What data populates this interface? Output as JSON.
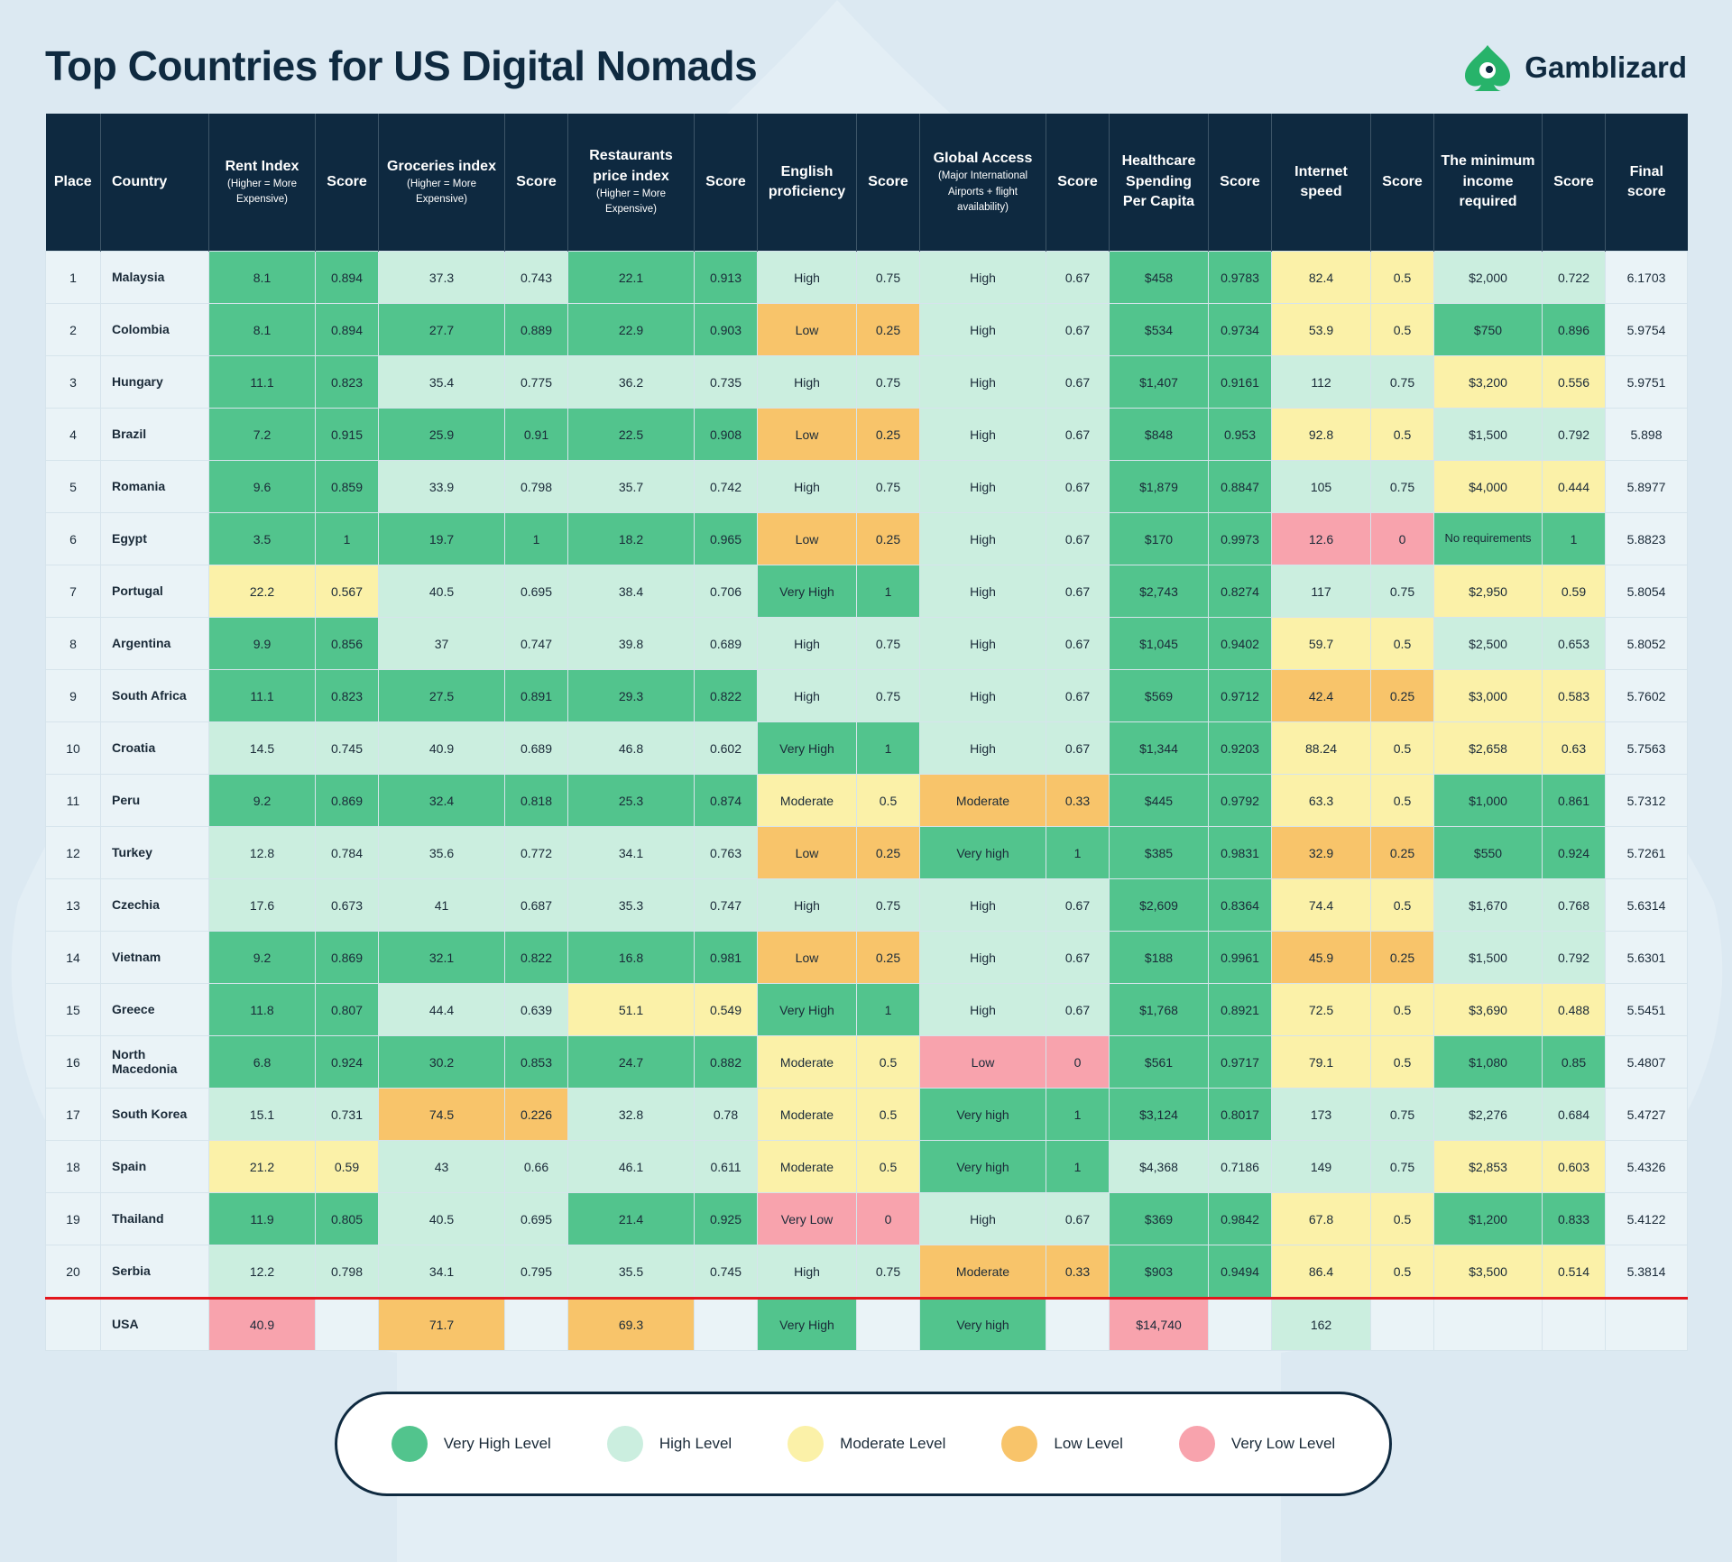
{
  "title": "Top Countries for US Digital Nomads",
  "brand": "Gamblizard",
  "colors": {
    "very_high": "#52c48d",
    "high": "#cbeedf",
    "moderate": "#fbf1a8",
    "low": "#f8c46a",
    "very_low": "#f8a3ad",
    "header": "#0e2940",
    "divider": "#e3161d"
  },
  "legend": [
    {
      "key": "vh",
      "label": "Very High Level"
    },
    {
      "key": "h",
      "label": "High Level"
    },
    {
      "key": "m",
      "label": "Moderate Level"
    },
    {
      "key": "l",
      "label": "Low Level"
    },
    {
      "key": "vl",
      "label": "Very Low Level"
    }
  ],
  "headers": [
    {
      "label": "Place",
      "sub": ""
    },
    {
      "label": "Country",
      "sub": ""
    },
    {
      "label": "Rent Index",
      "sub": "(Higher = More Expensive)"
    },
    {
      "label": "Score",
      "sub": ""
    },
    {
      "label": "Groceries index",
      "sub": "(Higher = More Expensive)"
    },
    {
      "label": "Score",
      "sub": ""
    },
    {
      "label": "Restaurants price index",
      "sub": "(Higher = More Expensive)"
    },
    {
      "label": "Score",
      "sub": ""
    },
    {
      "label": "English proficiency",
      "sub": ""
    },
    {
      "label": "Score",
      "sub": ""
    },
    {
      "label": "Global Access",
      "sub": "(Major International Airports + flight availability)"
    },
    {
      "label": "Score",
      "sub": ""
    },
    {
      "label": "Healthcare Spending Per Capita",
      "sub": ""
    },
    {
      "label": "Score",
      "sub": ""
    },
    {
      "label": "Internet speed",
      "sub": ""
    },
    {
      "label": "Score",
      "sub": ""
    },
    {
      "label": "The minimum income required",
      "sub": ""
    },
    {
      "label": "Score",
      "sub": ""
    },
    {
      "label": "Final score",
      "sub": ""
    }
  ],
  "chart_data": {
    "type": "table",
    "title": "Top Countries for US Digital Nomads",
    "rows": [
      {
        "place": "1",
        "country": "Malaysia",
        "rent": "8.1",
        "rent_score": "0.894",
        "rent_level": "vh",
        "groc": "37.3",
        "groc_score": "0.743",
        "groc_level": "h",
        "rest": "22.1",
        "rest_score": "0.913",
        "rest_level": "vh",
        "eng": "High",
        "eng_score": "0.75",
        "eng_level": "h",
        "access": "High",
        "access_score": "0.67",
        "access_level": "h",
        "health": "$458",
        "health_score": "0.9783",
        "health_level": "vh",
        "net": "82.4",
        "net_score": "0.5",
        "net_level": "m",
        "income": "$2,000",
        "income_score": "0.722",
        "income_level": "h",
        "final": "6.1703"
      },
      {
        "place": "2",
        "country": "Colombia",
        "rent": "8.1",
        "rent_score": "0.894",
        "rent_level": "vh",
        "groc": "27.7",
        "groc_score": "0.889",
        "groc_level": "vh",
        "rest": "22.9",
        "rest_score": "0.903",
        "rest_level": "vh",
        "eng": "Low",
        "eng_score": "0.25",
        "eng_level": "l",
        "access": "High",
        "access_score": "0.67",
        "access_level": "h",
        "health": "$534",
        "health_score": "0.9734",
        "health_level": "vh",
        "net": "53.9",
        "net_score": "0.5",
        "net_level": "m",
        "income": "$750",
        "income_score": "0.896",
        "income_level": "vh",
        "final": "5.9754"
      },
      {
        "place": "3",
        "country": "Hungary",
        "rent": "11.1",
        "rent_score": "0.823",
        "rent_level": "vh",
        "groc": "35.4",
        "groc_score": "0.775",
        "groc_level": "h",
        "rest": "36.2",
        "rest_score": "0.735",
        "rest_level": "h",
        "eng": "High",
        "eng_score": "0.75",
        "eng_level": "h",
        "access": "High",
        "access_score": "0.67",
        "access_level": "h",
        "health": "$1,407",
        "health_score": "0.9161",
        "health_level": "vh",
        "net": "112",
        "net_score": "0.75",
        "net_level": "h",
        "income": "$3,200",
        "income_score": "0.556",
        "income_level": "m",
        "final": "5.9751"
      },
      {
        "place": "4",
        "country": "Brazil",
        "rent": "7.2",
        "rent_score": "0.915",
        "rent_level": "vh",
        "groc": "25.9",
        "groc_score": "0.91",
        "groc_level": "vh",
        "rest": "22.5",
        "rest_score": "0.908",
        "rest_level": "vh",
        "eng": "Low",
        "eng_score": "0.25",
        "eng_level": "l",
        "access": "High",
        "access_score": "0.67",
        "access_level": "h",
        "health": "$848",
        "health_score": "0.953",
        "health_level": "vh",
        "net": "92.8",
        "net_score": "0.5",
        "net_level": "m",
        "income": "$1,500",
        "income_score": "0.792",
        "income_level": "h",
        "final": "5.898"
      },
      {
        "place": "5",
        "country": "Romania",
        "rent": "9.6",
        "rent_score": "0.859",
        "rent_level": "vh",
        "groc": "33.9",
        "groc_score": "0.798",
        "groc_level": "h",
        "rest": "35.7",
        "rest_score": "0.742",
        "rest_level": "h",
        "eng": "High",
        "eng_score": "0.75",
        "eng_level": "h",
        "access": "High",
        "access_score": "0.67",
        "access_level": "h",
        "health": "$1,879",
        "health_score": "0.8847",
        "health_level": "vh",
        "net": "105",
        "net_score": "0.75",
        "net_level": "h",
        "income": "$4,000",
        "income_score": "0.444",
        "income_level": "m",
        "final": "5.8977"
      },
      {
        "place": "6",
        "country": "Egypt",
        "rent": "3.5",
        "rent_score": "1",
        "rent_level": "vh",
        "groc": "19.7",
        "groc_score": "1",
        "groc_level": "vh",
        "rest": "18.2",
        "rest_score": "0.965",
        "rest_level": "vh",
        "eng": "Low",
        "eng_score": "0.25",
        "eng_level": "l",
        "access": "High",
        "access_score": "0.67",
        "access_level": "h",
        "health": "$170",
        "health_score": "0.9973",
        "health_level": "vh",
        "net": "12.6",
        "net_score": "0",
        "net_level": "vl",
        "income": "No requirements",
        "income_score": "1",
        "income_level": "vh",
        "final": "5.8823"
      },
      {
        "place": "7",
        "country": "Portugal",
        "rent": "22.2",
        "rent_score": "0.567",
        "rent_level": "m",
        "groc": "40.5",
        "groc_score": "0.695",
        "groc_level": "h",
        "rest": "38.4",
        "rest_score": "0.706",
        "rest_level": "h",
        "eng": "Very High",
        "eng_score": "1",
        "eng_level": "vh",
        "access": "High",
        "access_score": "0.67",
        "access_level": "h",
        "health": "$2,743",
        "health_score": "0.8274",
        "health_level": "vh",
        "net": "117",
        "net_score": "0.75",
        "net_level": "h",
        "income": "$2,950",
        "income_score": "0.59",
        "income_level": "m",
        "final": "5.8054"
      },
      {
        "place": "8",
        "country": "Argentina",
        "rent": "9.9",
        "rent_score": "0.856",
        "rent_level": "vh",
        "groc": "37",
        "groc_score": "0.747",
        "groc_level": "h",
        "rest": "39.8",
        "rest_score": "0.689",
        "rest_level": "h",
        "eng": "High",
        "eng_score": "0.75",
        "eng_level": "h",
        "access": "High",
        "access_score": "0.67",
        "access_level": "h",
        "health": "$1,045",
        "health_score": "0.9402",
        "health_level": "vh",
        "net": "59.7",
        "net_score": "0.5",
        "net_level": "m",
        "income": "$2,500",
        "income_score": "0.653",
        "income_level": "h",
        "final": "5.8052"
      },
      {
        "place": "9",
        "country": "South Africa",
        "rent": "11.1",
        "rent_score": "0.823",
        "rent_level": "vh",
        "groc": "27.5",
        "groc_score": "0.891",
        "groc_level": "vh",
        "rest": "29.3",
        "rest_score": "0.822",
        "rest_level": "vh",
        "eng": "High",
        "eng_score": "0.75",
        "eng_level": "h",
        "access": "High",
        "access_score": "0.67",
        "access_level": "h",
        "health": "$569",
        "health_score": "0.9712",
        "health_level": "vh",
        "net": "42.4",
        "net_score": "0.25",
        "net_level": "l",
        "income": "$3,000",
        "income_score": "0.583",
        "income_level": "m",
        "final": "5.7602"
      },
      {
        "place": "10",
        "country": "Croatia",
        "rent": "14.5",
        "rent_score": "0.745",
        "rent_level": "h",
        "groc": "40.9",
        "groc_score": "0.689",
        "groc_level": "h",
        "rest": "46.8",
        "rest_score": "0.602",
        "rest_level": "h",
        "eng": "Very High",
        "eng_score": "1",
        "eng_level": "vh",
        "access": "High",
        "access_score": "0.67",
        "access_level": "h",
        "health": "$1,344",
        "health_score": "0.9203",
        "health_level": "vh",
        "net": "88.24",
        "net_score": "0.5",
        "net_level": "m",
        "income": "$2,658",
        "income_score": "0.63",
        "income_level": "m",
        "final": "5.7563"
      },
      {
        "place": "11",
        "country": "Peru",
        "rent": "9.2",
        "rent_score": "0.869",
        "rent_level": "vh",
        "groc": "32.4",
        "groc_score": "0.818",
        "groc_level": "vh",
        "rest": "25.3",
        "rest_score": "0.874",
        "rest_level": "vh",
        "eng": "Moderate",
        "eng_score": "0.5",
        "eng_level": "m",
        "access": "Moderate",
        "access_score": "0.33",
        "access_level": "l",
        "health": "$445",
        "health_score": "0.9792",
        "health_level": "vh",
        "net": "63.3",
        "net_score": "0.5",
        "net_level": "m",
        "income": "$1,000",
        "income_score": "0.861",
        "income_level": "vh",
        "final": "5.7312"
      },
      {
        "place": "12",
        "country": "Turkey",
        "rent": "12.8",
        "rent_score": "0.784",
        "rent_level": "h",
        "groc": "35.6",
        "groc_score": "0.772",
        "groc_level": "h",
        "rest": "34.1",
        "rest_score": "0.763",
        "rest_level": "h",
        "eng": "Low",
        "eng_score": "0.25",
        "eng_level": "l",
        "access": "Very high",
        "access_score": "1",
        "access_level": "vh",
        "health": "$385",
        "health_score": "0.9831",
        "health_level": "vh",
        "net": "32.9",
        "net_score": "0.25",
        "net_level": "l",
        "income": "$550",
        "income_score": "0.924",
        "income_level": "vh",
        "final": "5.7261"
      },
      {
        "place": "13",
        "country": "Czechia",
        "rent": "17.6",
        "rent_score": "0.673",
        "rent_level": "h",
        "groc": "41",
        "groc_score": "0.687",
        "groc_level": "h",
        "rest": "35.3",
        "rest_score": "0.747",
        "rest_level": "h",
        "eng": "High",
        "eng_score": "0.75",
        "eng_level": "h",
        "access": "High",
        "access_score": "0.67",
        "access_level": "h",
        "health": "$2,609",
        "health_score": "0.8364",
        "health_level": "vh",
        "net": "74.4",
        "net_score": "0.5",
        "net_level": "m",
        "income": "$1,670",
        "income_score": "0.768",
        "income_level": "h",
        "final": "5.6314"
      },
      {
        "place": "14",
        "country": "Vietnam",
        "rent": "9.2",
        "rent_score": "0.869",
        "rent_level": "vh",
        "groc": "32.1",
        "groc_score": "0.822",
        "groc_level": "vh",
        "rest": "16.8",
        "rest_score": "0.981",
        "rest_level": "vh",
        "eng": "Low",
        "eng_score": "0.25",
        "eng_level": "l",
        "access": "High",
        "access_score": "0.67",
        "access_level": "h",
        "health": "$188",
        "health_score": "0.9961",
        "health_level": "vh",
        "net": "45.9",
        "net_score": "0.25",
        "net_level": "l",
        "income": "$1,500",
        "income_score": "0.792",
        "income_level": "h",
        "final": "5.6301"
      },
      {
        "place": "15",
        "country": "Greece",
        "rent": "11.8",
        "rent_score": "0.807",
        "rent_level": "vh",
        "groc": "44.4",
        "groc_score": "0.639",
        "groc_level": "h",
        "rest": "51.1",
        "rest_score": "0.549",
        "rest_level": "m",
        "eng": "Very High",
        "eng_score": "1",
        "eng_level": "vh",
        "access": "High",
        "access_score": "0.67",
        "access_level": "h",
        "health": "$1,768",
        "health_score": "0.8921",
        "health_level": "vh",
        "net": "72.5",
        "net_score": "0.5",
        "net_level": "m",
        "income": "$3,690",
        "income_score": "0.488",
        "income_level": "m",
        "final": "5.5451"
      },
      {
        "place": "16",
        "country": "North Macedonia",
        "rent": "6.8",
        "rent_score": "0.924",
        "rent_level": "vh",
        "groc": "30.2",
        "groc_score": "0.853",
        "groc_level": "vh",
        "rest": "24.7",
        "rest_score": "0.882",
        "rest_level": "vh",
        "eng": "Moderate",
        "eng_score": "0.5",
        "eng_level": "m",
        "access": "Low",
        "access_score": "0",
        "access_level": "vl",
        "health": "$561",
        "health_score": "0.9717",
        "health_level": "vh",
        "net": "79.1",
        "net_score": "0.5",
        "net_level": "m",
        "income": "$1,080",
        "income_score": "0.85",
        "income_level": "vh",
        "final": "5.4807"
      },
      {
        "place": "17",
        "country": "South Korea",
        "rent": "15.1",
        "rent_score": "0.731",
        "rent_level": "h",
        "groc": "74.5",
        "groc_score": "0.226",
        "groc_level": "l",
        "rest": "32.8",
        "rest_score": "0.78",
        "rest_level": "h",
        "eng": "Moderate",
        "eng_score": "0.5",
        "eng_level": "m",
        "access": "Very high",
        "access_score": "1",
        "access_level": "vh",
        "health": "$3,124",
        "health_score": "0.8017",
        "health_level": "vh",
        "net": "173",
        "net_score": "0.75",
        "net_level": "h",
        "income": "$2,276",
        "income_score": "0.684",
        "income_level": "h",
        "final": "5.4727"
      },
      {
        "place": "18",
        "country": "Spain",
        "rent": "21.2",
        "rent_score": "0.59",
        "rent_level": "m",
        "groc": "43",
        "groc_score": "0.66",
        "groc_level": "h",
        "rest": "46.1",
        "rest_score": "0.611",
        "rest_level": "h",
        "eng": "Moderate",
        "eng_score": "0.5",
        "eng_level": "m",
        "access": "Very high",
        "access_score": "1",
        "access_level": "vh",
        "health": "$4,368",
        "health_score": "0.7186",
        "health_level": "h",
        "net": "149",
        "net_score": "0.75",
        "net_level": "h",
        "income": "$2,853",
        "income_score": "0.603",
        "income_level": "m",
        "final": "5.4326"
      },
      {
        "place": "19",
        "country": "Thailand",
        "rent": "11.9",
        "rent_score": "0.805",
        "rent_level": "vh",
        "groc": "40.5",
        "groc_score": "0.695",
        "groc_level": "h",
        "rest": "21.4",
        "rest_score": "0.925",
        "rest_level": "vh",
        "eng": "Very Low",
        "eng_score": "0",
        "eng_level": "vl",
        "access": "High",
        "access_score": "0.67",
        "access_level": "h",
        "health": "$369",
        "health_score": "0.9842",
        "health_level": "vh",
        "net": "67.8",
        "net_score": "0.5",
        "net_level": "m",
        "income": "$1,200",
        "income_score": "0.833",
        "income_level": "vh",
        "final": "5.4122"
      },
      {
        "place": "20",
        "country": "Serbia",
        "rent": "12.2",
        "rent_score": "0.798",
        "rent_level": "h",
        "groc": "34.1",
        "groc_score": "0.795",
        "groc_level": "h",
        "rest": "35.5",
        "rest_score": "0.745",
        "rest_level": "h",
        "eng": "High",
        "eng_score": "0.75",
        "eng_level": "h",
        "access": "Moderate",
        "access_score": "0.33",
        "access_level": "l",
        "health": "$903",
        "health_score": "0.9494",
        "health_level": "vh",
        "net": "86.4",
        "net_score": "0.5",
        "net_level": "m",
        "income": "$3,500",
        "income_score": "0.514",
        "income_level": "m",
        "final": "5.3814"
      }
    ],
    "usa": {
      "place": "",
      "country": "USA",
      "rent": "40.9",
      "rent_level": "vl",
      "groc": "71.7",
      "groc_level": "l",
      "rest": "69.3",
      "rest_level": "l",
      "eng": "Very High",
      "eng_level": "vh",
      "access": "Very high",
      "access_level": "vh",
      "health": "$14,740",
      "health_level": "vl",
      "net": "162",
      "net_level": "h"
    }
  }
}
